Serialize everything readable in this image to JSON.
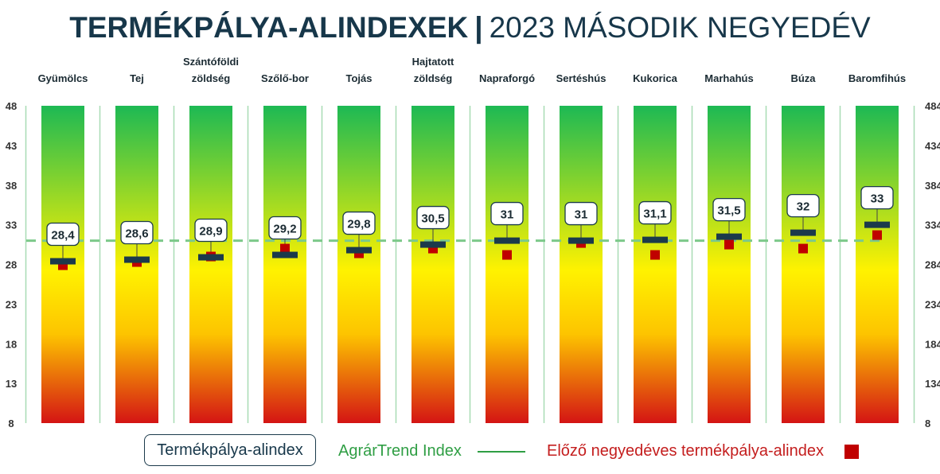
{
  "title": {
    "bold": "TERMÉKPÁLYA-ALINDEXEK",
    "separator": "|",
    "light": "2023 MÁSODIK NEGYEDÉV"
  },
  "legend": {
    "index_label": "Termékpálya-alindex",
    "agrartrend_label": "AgrárTrend Index",
    "previous_label": "Előző negyedéves termékpálya-alindex"
  },
  "colors": {
    "title": "#17374a",
    "bar_top": "#1db954",
    "bar_mid": "#fff200",
    "bar_bottom": "#d41414",
    "marker": "#1b3a4b",
    "previous": "#c00000",
    "agrartrend": "#2f9e44",
    "reference_line": "#7cc98a",
    "separator": "#a8dcb4"
  },
  "chart_data": {
    "type": "bar",
    "categories": [
      "Gyümölcs",
      "Tej",
      "Szántóföldi zöldség",
      "Szőlő-bor",
      "Tojás",
      "Hajtatott zöldség",
      "Napraforgó",
      "Sertéshús",
      "Kukorica",
      "Marhahús",
      "Búza",
      "Baromfihús"
    ],
    "category_lines": [
      [
        "Gyümölcs"
      ],
      [
        "Tej"
      ],
      [
        "Szántóföldi",
        "zöldség"
      ],
      [
        "Szőlő-bor"
      ],
      [
        "Tojás"
      ],
      [
        "Hajtatott",
        "zöldség"
      ],
      [
        "Napraforgó"
      ],
      [
        "Sertéshús"
      ],
      [
        "Kukorica"
      ],
      [
        "Marhahús"
      ],
      [
        "Búza"
      ],
      [
        "Baromfihús"
      ]
    ],
    "series": [
      {
        "name": "Termékpálya-alindex",
        "values": [
          28.4,
          28.6,
          28.9,
          29.2,
          29.8,
          30.5,
          31,
          31,
          31.1,
          31.5,
          32,
          33
        ],
        "labels": [
          "28,4",
          "28,6",
          "28,9",
          "29,2",
          "29,8",
          "30,5",
          "31",
          "31",
          "31,1",
          "31,5",
          "32",
          "33"
        ]
      },
      {
        "name": "Előző negyedéves termékpálya-alindex",
        "values": [
          27.9,
          28.3,
          29.0,
          30.0,
          29.4,
          30.0,
          29.2,
          30.7,
          29.2,
          30.5,
          30.0,
          31.7
        ]
      }
    ],
    "reference_line": {
      "name": "AgrárTrend Index",
      "value": 31
    },
    "ylim": [
      8,
      48
    ],
    "yticks": [
      8,
      13,
      18,
      23,
      28,
      33,
      38,
      43,
      48
    ],
    "yticks_right": [
      "8",
      "134",
      "184",
      "234",
      "284",
      "334",
      "384",
      "434",
      "484"
    ]
  }
}
